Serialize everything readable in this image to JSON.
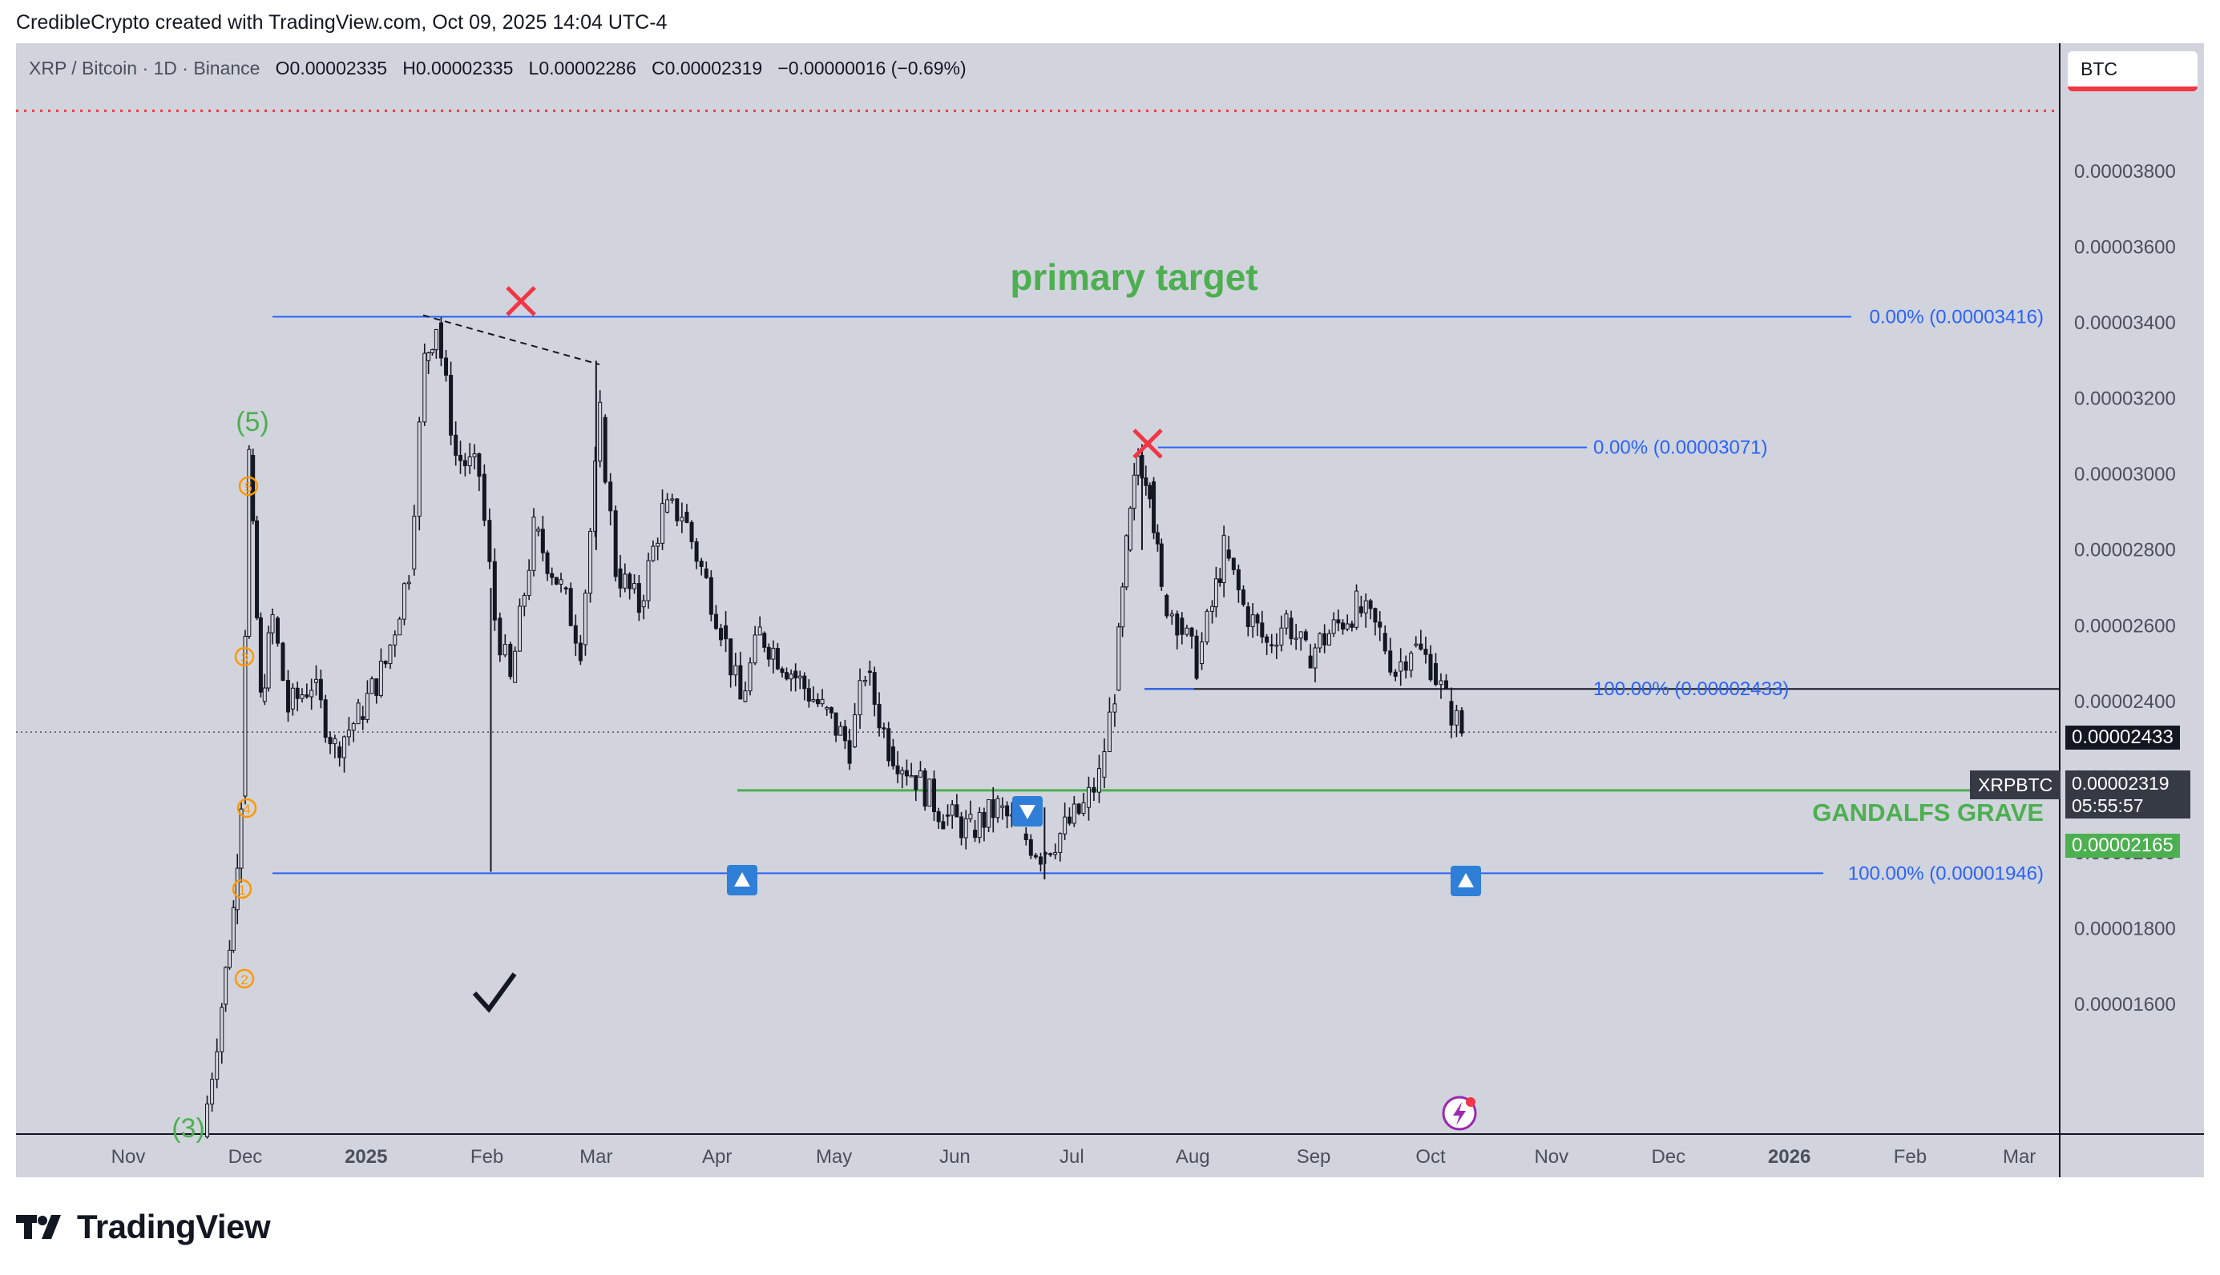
{
  "header": {
    "attribution": "CredibleCrypto created with TradingView.com, Oct 09, 2025 14:04 UTC-4"
  },
  "legend": {
    "symbol": "XRP / Bitcoin · 1D · Binance",
    "o_label": "O",
    "o_value": "0.00002335",
    "h_label": "H",
    "h_value": "0.00002335",
    "l_label": "L",
    "l_value": "0.00002286",
    "c_label": "C",
    "c_value": "0.00002319",
    "change": "−0.00000016 (−0.69%)"
  },
  "currency_button": "BTC",
  "price_tags": {
    "level_black": "0.00002433",
    "symbol": "XRPBTC",
    "last": "0.00002319",
    "countdown": "05:55:57",
    "gandalf": "0.00002165"
  },
  "annotations": {
    "primary_target": "primary target",
    "gandalfs_grave": "GANDALFS GRAVE",
    "fib1_top": "0.00% (0.00003416)",
    "fib1_bottom": "100.00% (0.00001946)",
    "fib2_top": "0.00% (0.00003071)",
    "fib2_bottom": "100.00% (0.00002433)",
    "wave5": "(5)",
    "wave3": "(3)",
    "sub_waves": [
      "5",
      "3",
      "4",
      "1",
      "2"
    ]
  },
  "colors": {
    "background": "#d1d4dc",
    "candle": "#131722",
    "fib": "#2962ff",
    "gandalf": "#4caf50",
    "cross": "#f23645",
    "wave_sub": "#ff9800",
    "arrow_box": "#2f7ed8"
  },
  "footer": {
    "brand": "TradingView"
  },
  "chart_data": {
    "type": "candlestick",
    "title": "XRP / Bitcoin · 1D · Binance",
    "ylim": [
      1.5e-05,
      3.98e-05
    ],
    "y_ticks": [
      "0.00003800",
      "0.00003600",
      "0.00003400",
      "0.00003200",
      "0.00003000",
      "0.00002800",
      "0.00002600",
      "0.00002400",
      "0.00002200",
      "0.00002000",
      "0.00001800",
      "0.00001600"
    ],
    "y_tick_values": [
      3.8e-05,
      3.6e-05,
      3.4e-05,
      3.2e-05,
      3e-05,
      2.8e-05,
      2.6e-05,
      2.4e-05,
      2.2e-05,
      2e-05,
      1.8e-05,
      1.6e-05
    ],
    "x_ticks": [
      "Nov",
      "Dec",
      "2025",
      "Feb",
      "Mar",
      "Apr",
      "May",
      "Jun",
      "Jul",
      "Aug",
      "Sep",
      "Oct",
      "Nov",
      "Dec",
      "2026",
      "Feb",
      "Mar"
    ],
    "x_tick_dates": [
      "2024-11-01",
      "2024-12-01",
      "2025-01-01",
      "2025-02-01",
      "2025-03-01",
      "2025-04-01",
      "2025-05-01",
      "2025-06-01",
      "2025-07-01",
      "2025-08-01",
      "2025-09-01",
      "2025-10-01",
      "2025-11-01",
      "2025-12-01",
      "2026-01-01",
      "2026-02-01",
      "2026-03-01"
    ],
    "price_path": [
      [
        "2024-11-20",
        1.25e-05
      ],
      [
        "2024-11-25",
        1.6e-05
      ],
      [
        "2024-11-28",
        1.85e-05
      ],
      [
        "2024-11-30",
        2.15e-05
      ],
      [
        "2024-12-02",
        3.05e-05
      ],
      [
        "2024-12-05",
        2.4e-05
      ],
      [
        "2024-12-08",
        2.62e-05
      ],
      [
        "2024-12-12",
        2.38e-05
      ],
      [
        "2024-12-18",
        2.45e-05
      ],
      [
        "2024-12-24",
        2.28e-05
      ],
      [
        "2024-12-30",
        2.36e-05
      ],
      [
        "2025-01-06",
        2.5e-05
      ],
      [
        "2025-01-12",
        2.75e-05
      ],
      [
        "2025-01-16",
        3.3e-05
      ],
      [
        "2025-01-19",
        3.4e-05
      ],
      [
        "2025-01-24",
        3.05e-05
      ],
      [
        "2025-01-30",
        3e-05
      ],
      [
        "2025-02-03",
        2.62e-05
      ],
      [
        "2025-02-07",
        2.45e-05
      ],
      [
        "2025-02-13",
        2.85e-05
      ],
      [
        "2025-02-20",
        2.7e-05
      ],
      [
        "2025-02-25",
        2.55e-05
      ],
      [
        "2025-03-02",
        3.15e-05
      ],
      [
        "2025-03-06",
        2.75e-05
      ],
      [
        "2025-03-12",
        2.65e-05
      ],
      [
        "2025-03-18",
        2.9e-05
      ],
      [
        "2025-03-23",
        2.9e-05
      ],
      [
        "2025-03-28",
        2.75e-05
      ],
      [
        "2025-04-02",
        2.6e-05
      ],
      [
        "2025-04-07",
        2.4e-05
      ],
      [
        "2025-04-12",
        2.58e-05
      ],
      [
        "2025-04-20",
        2.48e-05
      ],
      [
        "2025-04-28",
        2.38e-05
      ],
      [
        "2025-05-05",
        2.28e-05
      ],
      [
        "2025-05-09",
        2.48e-05
      ],
      [
        "2025-05-15",
        2.28e-05
      ],
      [
        "2025-05-22",
        2.2e-05
      ],
      [
        "2025-05-29",
        2.1e-05
      ],
      [
        "2025-06-05",
        2.06e-05
      ],
      [
        "2025-06-12",
        2.12e-05
      ],
      [
        "2025-06-18",
        2.05e-05
      ],
      [
        "2025-06-23",
        2e-05
      ],
      [
        "2025-06-28",
        2.05e-05
      ],
      [
        "2025-07-04",
        2.12e-05
      ],
      [
        "2025-07-08",
        2.2e-05
      ],
      [
        "2025-07-12",
        2.43e-05
      ],
      [
        "2025-07-15",
        2.8e-05
      ],
      [
        "2025-07-18",
        3.05e-05
      ],
      [
        "2025-07-21",
        2.98e-05
      ],
      [
        "2025-07-24",
        2.68e-05
      ],
      [
        "2025-07-28",
        2.62e-05
      ],
      [
        "2025-08-02",
        2.5e-05
      ],
      [
        "2025-08-06",
        2.65e-05
      ],
      [
        "2025-08-09",
        2.8e-05
      ],
      [
        "2025-08-14",
        2.65e-05
      ],
      [
        "2025-08-20",
        2.55e-05
      ],
      [
        "2025-08-25",
        2.62e-05
      ],
      [
        "2025-08-30",
        2.52e-05
      ],
      [
        "2025-09-05",
        2.58e-05
      ],
      [
        "2025-09-12",
        2.65e-05
      ],
      [
        "2025-09-18",
        2.58e-05
      ],
      [
        "2025-09-22",
        2.48e-05
      ],
      [
        "2025-09-26",
        2.55e-05
      ],
      [
        "2025-10-01",
        2.5e-05
      ],
      [
        "2025-10-05",
        2.4e-05
      ],
      [
        "2025-10-09",
        2.32e-05
      ]
    ],
    "horizontal_levels": [
      {
        "label": "0.00% (0.00003416)",
        "value": 3.416e-05,
        "color": "#2962ff"
      },
      {
        "label": "100.00% (0.00001946)",
        "value": 1.946e-05,
        "color": "#2962ff"
      },
      {
        "label": "0.00% (0.00003071)",
        "value": 3.071e-05,
        "color": "#2962ff"
      },
      {
        "label": "100.00% (0.00002433)",
        "value": 2.433e-05,
        "color": "#2962ff"
      },
      {
        "label": "GANDALFS GRAVE",
        "value": 2.165e-05,
        "color": "#4caf50"
      },
      {
        "label": "",
        "value": 3.96e-05,
        "color": "#f23645"
      }
    ],
    "last_price": 2.319e-05,
    "grid": false
  }
}
